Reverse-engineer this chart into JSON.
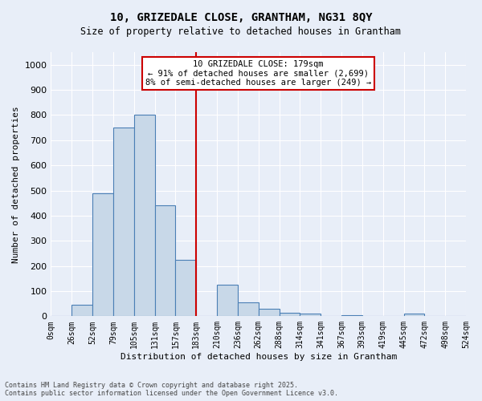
{
  "title": "10, GRIZEDALE CLOSE, GRANTHAM, NG31 8QY",
  "subtitle": "Size of property relative to detached houses in Grantham",
  "xlabel": "Distribution of detached houses by size in Grantham",
  "ylabel": "Number of detached properties",
  "footer_line1": "Contains HM Land Registry data © Crown copyright and database right 2025.",
  "footer_line2": "Contains public sector information licensed under the Open Government Licence v3.0.",
  "bins": [
    "0sqm",
    "26sqm",
    "52sqm",
    "79sqm",
    "105sqm",
    "131sqm",
    "157sqm",
    "183sqm",
    "210sqm",
    "236sqm",
    "262sqm",
    "288sqm",
    "314sqm",
    "341sqm",
    "367sqm",
    "393sqm",
    "419sqm",
    "445sqm",
    "472sqm",
    "498sqm",
    "524sqm"
  ],
  "bar_values": [
    0,
    45,
    490,
    750,
    800,
    440,
    225,
    0,
    125,
    55,
    30,
    15,
    10,
    0,
    5,
    0,
    0,
    10,
    0,
    0
  ],
  "bar_color": "#c8d8e8",
  "bar_edge_color": "#4a7fb5",
  "bg_color": "#e8eef8",
  "grid_color": "#ffffff",
  "vline_x": 7,
  "vline_color": "#cc0000",
  "annotation_text": "10 GRIZEDALE CLOSE: 179sqm\n← 91% of detached houses are smaller (2,699)\n8% of semi-detached houses are larger (249) →",
  "annotation_box_color": "#cc0000",
  "ylim": [
    0,
    1050
  ],
  "yticks": [
    0,
    100,
    200,
    300,
    400,
    500,
    600,
    700,
    800,
    900,
    1000
  ]
}
